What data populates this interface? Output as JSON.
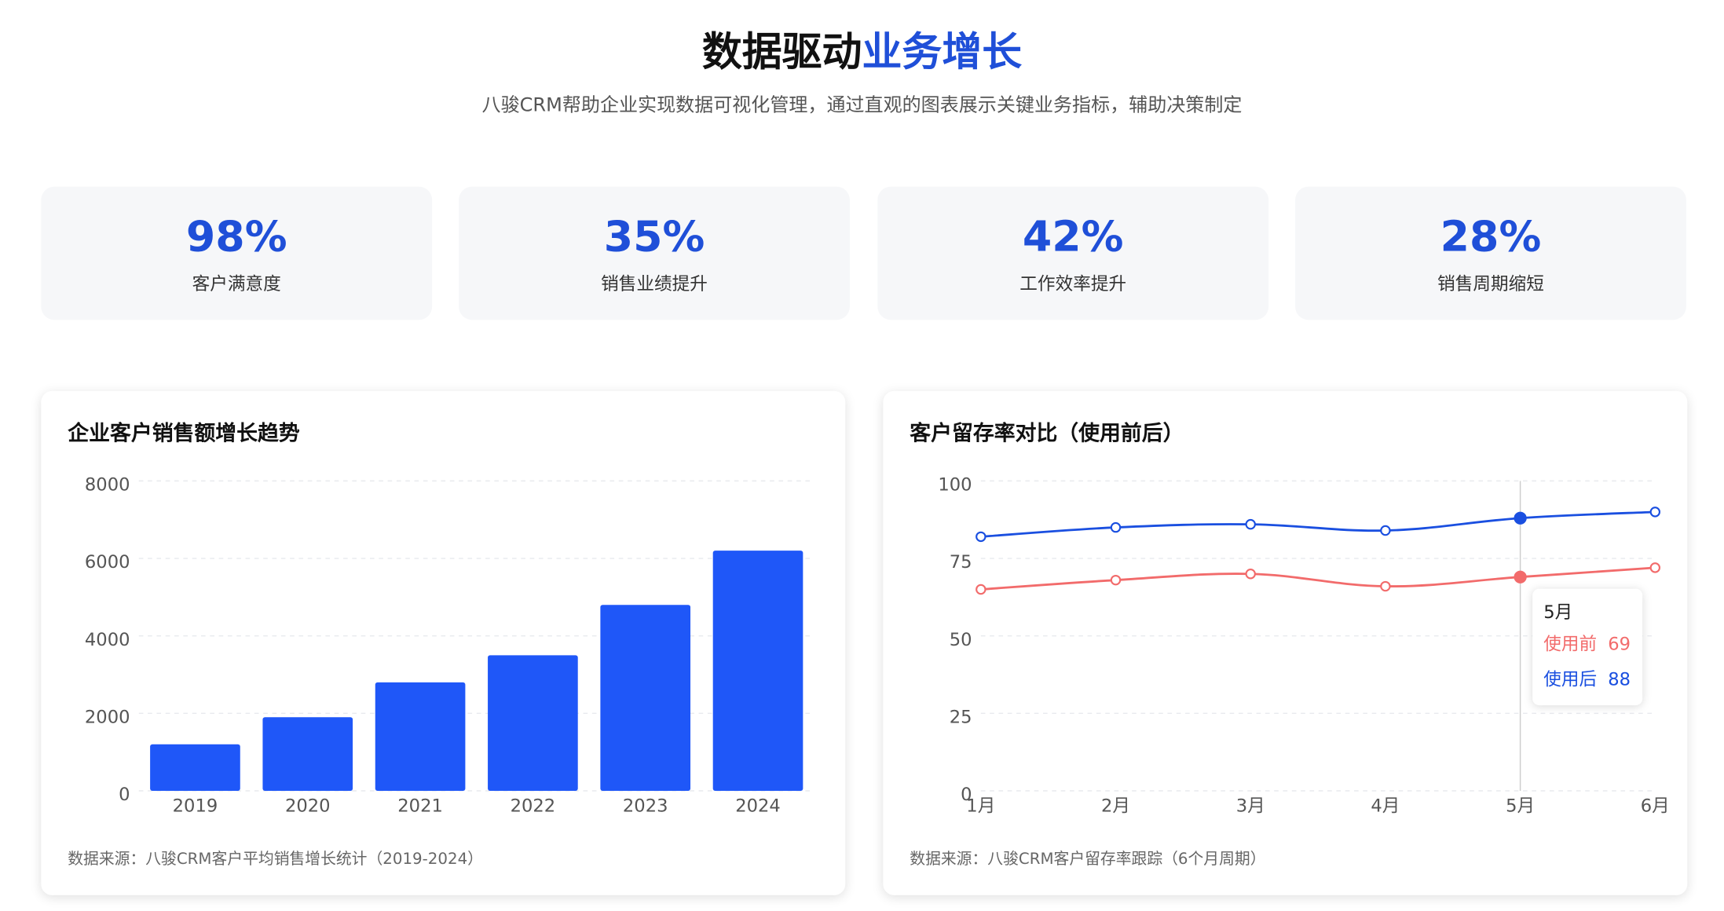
{
  "header": {
    "title_main": "数据驱动",
    "title_highlight": "业务增长",
    "subtitle": "八骏CRM帮助企业实现数据可视化管理，通过直观的图表展示关键业务指标，辅助决策制定"
  },
  "stats": [
    {
      "value": "98%",
      "label": "客户满意度"
    },
    {
      "value": "35%",
      "label": "销售业绩提升"
    },
    {
      "value": "42%",
      "label": "工作效率提升"
    },
    {
      "value": "28%",
      "label": "销售周期缩短"
    }
  ],
  "chart_data": [
    {
      "type": "bar",
      "title": "企业客户销售额增长趋势",
      "categories": [
        "2019",
        "2020",
        "2021",
        "2022",
        "2023",
        "2024"
      ],
      "values": [
        1200,
        1900,
        2800,
        3500,
        4800,
        6200
      ],
      "color": "#1f57f8",
      "ylim": [
        0,
        8000
      ],
      "yticks": [
        0,
        2000,
        4000,
        6000,
        8000
      ],
      "grid": true,
      "source": "数据来源：八骏CRM客户平均销售增长统计（2019-2024）"
    },
    {
      "type": "line",
      "title": "客户留存率对比（使用前后）",
      "categories": [
        "1月",
        "2月",
        "3月",
        "4月",
        "5月",
        "6月"
      ],
      "series": [
        {
          "name": "使用前",
          "color": "#f26b6b",
          "values": [
            65,
            68,
            70,
            66,
            69,
            72
          ]
        },
        {
          "name": "使用后",
          "color": "#1a4fe0",
          "values": [
            82,
            85,
            86,
            84,
            88,
            90
          ]
        }
      ],
      "ylim": [
        0,
        100
      ],
      "yticks": [
        0,
        25,
        50,
        75,
        100
      ],
      "grid": true,
      "tooltip_index": 4,
      "source": "数据来源：八骏CRM客户留存率跟踪（6个月周期）"
    }
  ]
}
